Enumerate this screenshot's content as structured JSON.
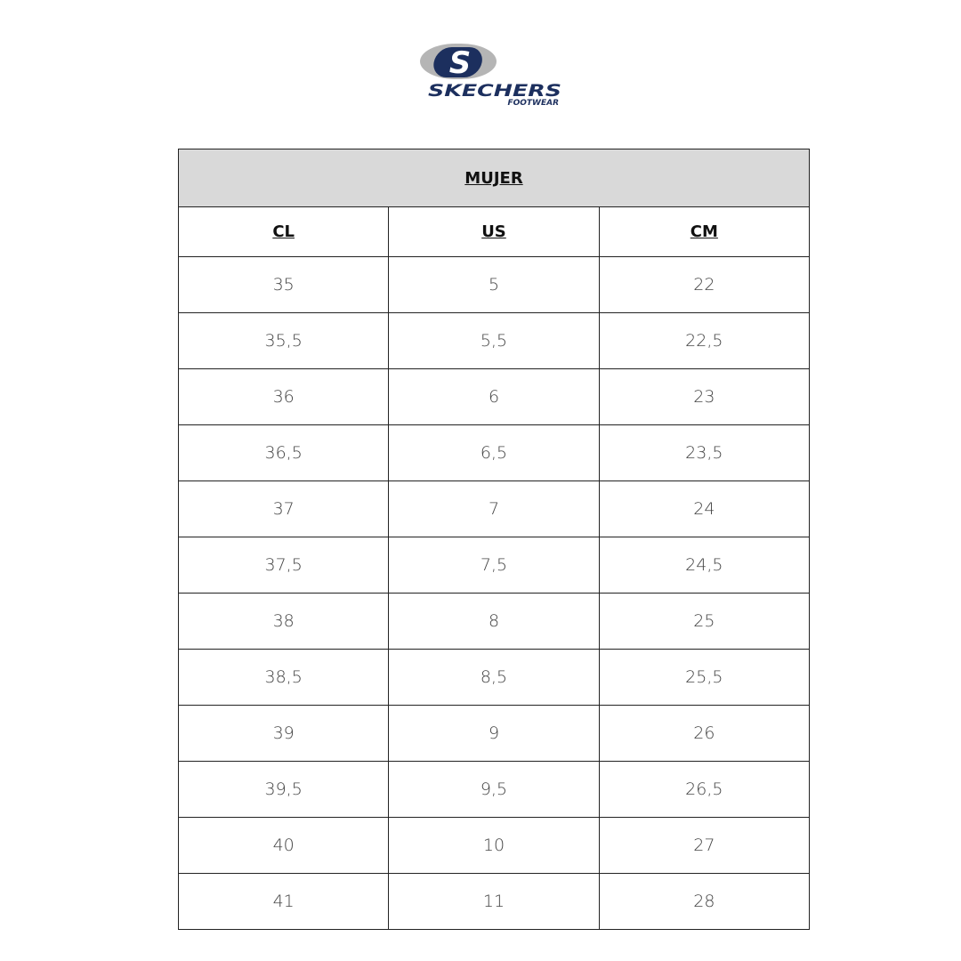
{
  "logo": {
    "brand": "SKECHERS",
    "sub": "FOOTWEAR",
    "colors": {
      "navy": "#1c2f5e",
      "grey": "#b5b5b5"
    }
  },
  "table": {
    "title": "MUJER",
    "columns": [
      "CL",
      "US",
      "CM"
    ],
    "rows": [
      [
        "35",
        "5",
        "22"
      ],
      [
        "35,5",
        "5,5",
        "22,5"
      ],
      [
        "36",
        "6",
        "23"
      ],
      [
        "36,5",
        "6,5",
        "23,5"
      ],
      [
        "37",
        "7",
        "24"
      ],
      [
        "37,5",
        "7,5",
        "24,5"
      ],
      [
        "38",
        "8",
        "25"
      ],
      [
        "38,5",
        "8,5",
        "25,5"
      ],
      [
        "39",
        "9",
        "26"
      ],
      [
        "39,5",
        "9,5",
        "26,5"
      ],
      [
        "40",
        "10",
        "27"
      ],
      [
        "41",
        "11",
        "28"
      ]
    ]
  }
}
